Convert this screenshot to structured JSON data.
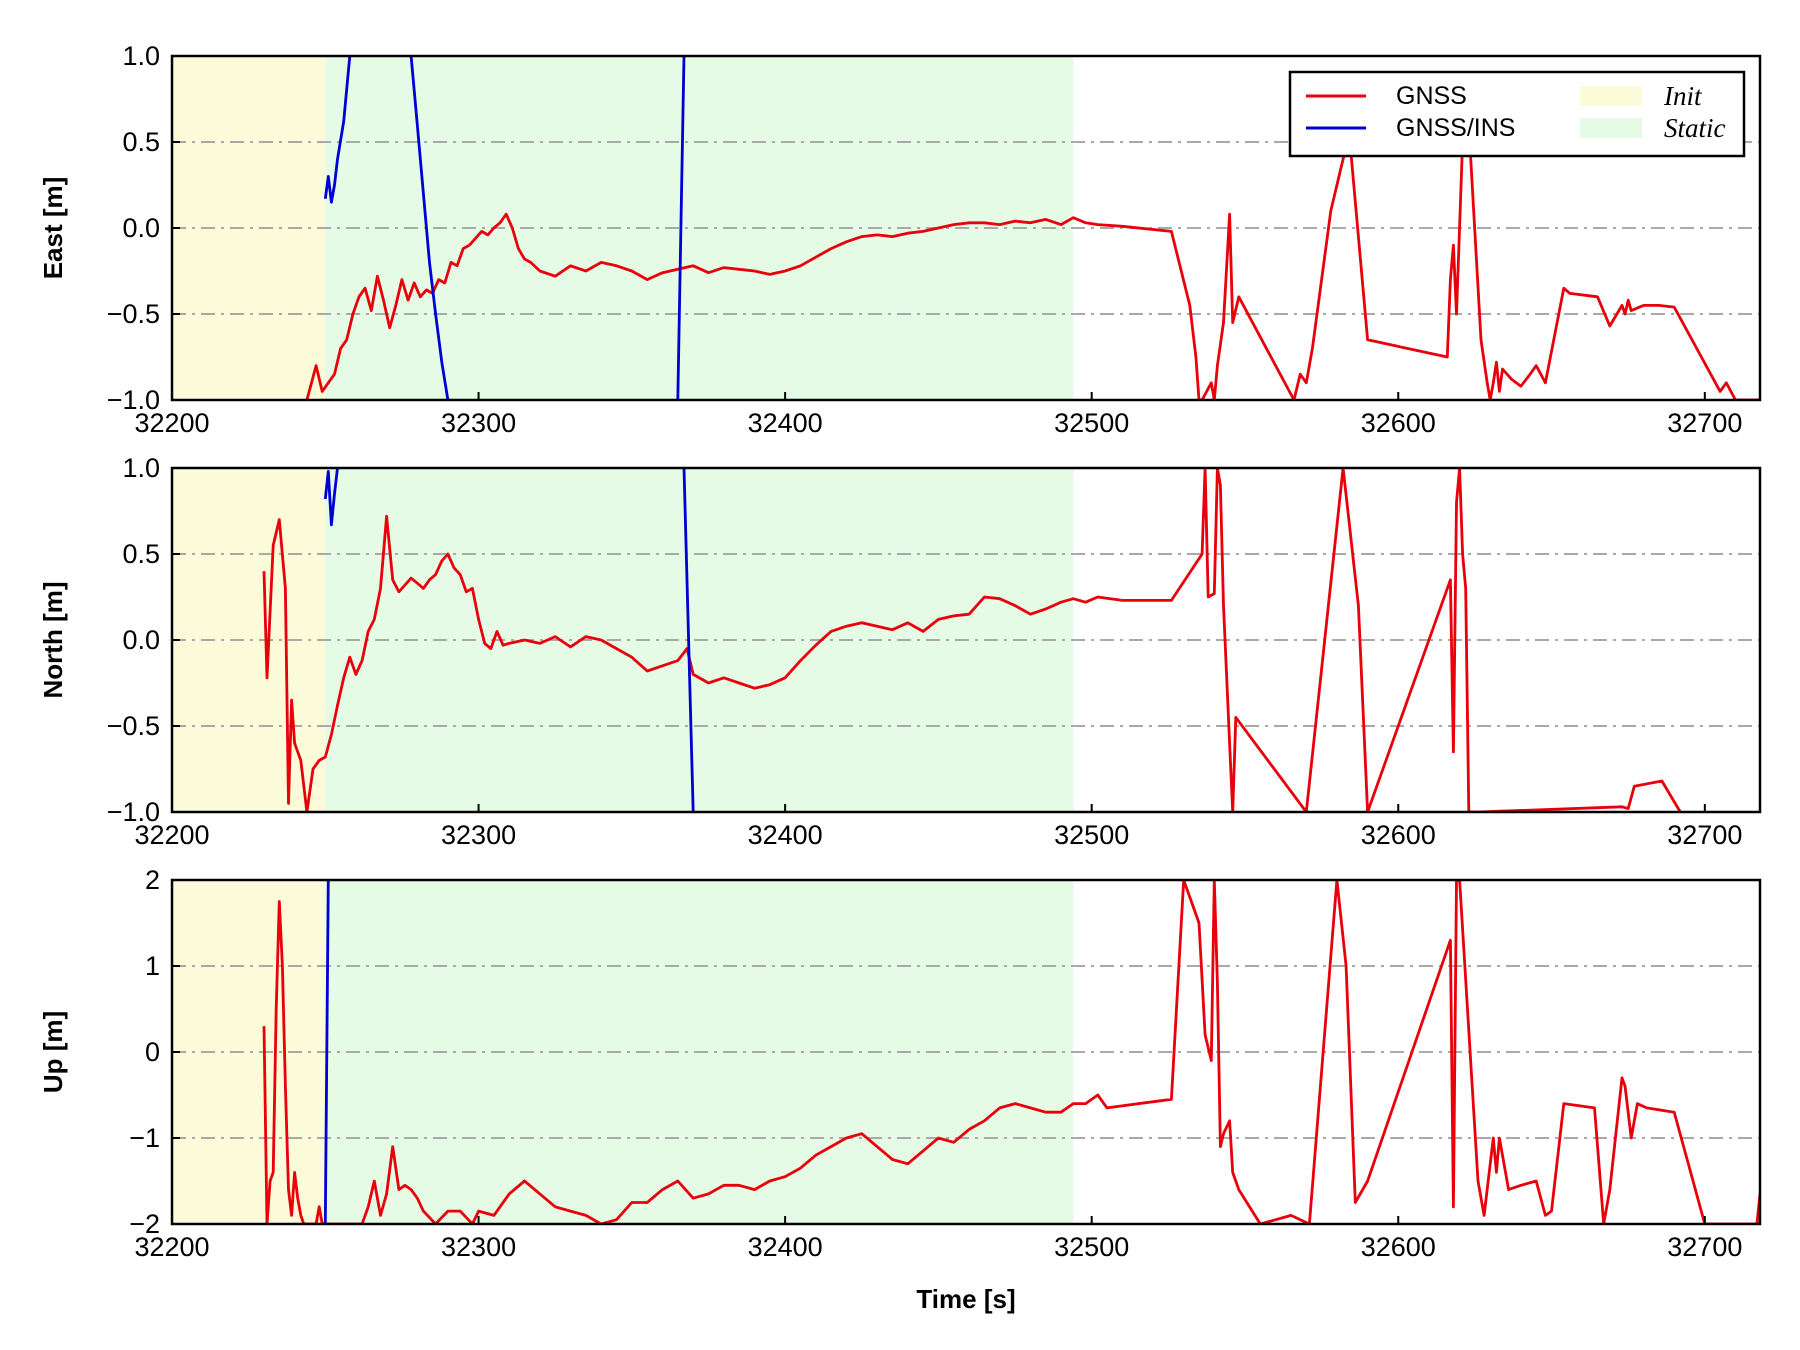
{
  "colors": {
    "gnss": "#e8000b",
    "gnss_ins": "#0000d4",
    "init_region": "#fbfbd9",
    "static_region": "#e6fbe6",
    "grid": "#a9a9a9",
    "axis": "#000000"
  },
  "legend": {
    "placement": "top-right",
    "items": [
      {
        "label": "GNSS",
        "kind": "line",
        "color_key": "gnss"
      },
      {
        "label": "GNSS/INS",
        "kind": "line",
        "color_key": "gnss_ins"
      },
      {
        "label": "Init",
        "kind": "patch",
        "color_key": "init_region"
      },
      {
        "label": "Static",
        "kind": "patch",
        "color_key": "static_region"
      }
    ]
  },
  "xlabel": "Time [s]",
  "chart_data": [
    {
      "type": "line",
      "ylabel": "East [m]",
      "xlim": [
        32200,
        32718
      ],
      "ylim": [
        -1,
        1
      ],
      "xticks": [
        32200,
        32300,
        32400,
        32500,
        32600,
        32700
      ],
      "xtick_labels": [
        "32200",
        "32300",
        "32400",
        "32500",
        "32600",
        "32700"
      ],
      "yticks": [
        -1,
        -0.5,
        0,
        0.5,
        1
      ],
      "ytick_labels": [
        "−1.0",
        "−0.5",
        "0.0",
        "0.5",
        "1.0"
      ],
      "grid": "horizontal dash-dot",
      "regions": [
        {
          "label": "Init",
          "x": [
            32200,
            32250
          ]
        },
        {
          "label": "Static",
          "x": [
            32250,
            32494
          ]
        }
      ],
      "series": [
        {
          "name": "GNSS",
          "x": [
            32244,
            32247,
            32249,
            32251,
            32253,
            32255,
            32257,
            32259,
            32261,
            32263,
            32265,
            32267,
            32269,
            32271,
            32273,
            32275,
            32277,
            32279,
            32281,
            32283,
            32285,
            32287,
            32289,
            32291,
            32293,
            32295,
            32297,
            32299,
            32301,
            32303,
            32305,
            32307,
            32309,
            32311,
            32313,
            32315,
            32317,
            32320,
            32325,
            32330,
            32335,
            32340,
            32345,
            32350,
            32355,
            32360,
            32365,
            32370,
            32375,
            32380,
            32385,
            32390,
            32395,
            32400,
            32405,
            32410,
            32415,
            32420,
            32425,
            32430,
            32435,
            32440,
            32445,
            32450,
            32455,
            32460,
            32465,
            32470,
            32475,
            32480,
            32485,
            32490,
            32494,
            32498,
            32502,
            32510,
            32526,
            32532,
            32534,
            32535,
            32536,
            32539,
            32540,
            32541,
            32543,
            32545,
            32546,
            32548,
            32566,
            32568,
            32570,
            32572,
            32578,
            32584,
            32590,
            32616,
            32617,
            32618,
            32619,
            32621,
            32623,
            32627,
            32629,
            32630,
            32631,
            32632,
            32633,
            32634,
            32637,
            32640,
            32643,
            32645,
            32648,
            32654,
            32656,
            32665,
            32669,
            32673,
            32674,
            32675,
            32676,
            32680,
            32685,
            32690,
            32705,
            32707,
            32710,
            32718
          ],
          "y": [
            -1.0,
            -0.8,
            -0.95,
            -0.9,
            -0.85,
            -0.7,
            -0.65,
            -0.5,
            -0.4,
            -0.35,
            -0.48,
            -0.28,
            -0.42,
            -0.58,
            -0.45,
            -0.3,
            -0.42,
            -0.32,
            -0.4,
            -0.36,
            -0.38,
            -0.3,
            -0.32,
            -0.2,
            -0.22,
            -0.12,
            -0.1,
            -0.06,
            -0.02,
            -0.04,
            0.0,
            0.03,
            0.08,
            0.0,
            -0.12,
            -0.18,
            -0.2,
            -0.25,
            -0.28,
            -0.22,
            -0.25,
            -0.2,
            -0.22,
            -0.25,
            -0.3,
            -0.26,
            -0.24,
            -0.22,
            -0.26,
            -0.23,
            -0.24,
            -0.25,
            -0.27,
            -0.25,
            -0.22,
            -0.17,
            -0.12,
            -0.08,
            -0.05,
            -0.04,
            -0.05,
            -0.03,
            -0.02,
            0.0,
            0.02,
            0.03,
            0.03,
            0.02,
            0.04,
            0.03,
            0.05,
            0.02,
            0.06,
            0.03,
            0.02,
            0.01,
            -0.02,
            -0.45,
            -0.75,
            -1.0,
            -1.0,
            -0.9,
            -1.0,
            -0.8,
            -0.55,
            0.08,
            -0.55,
            -0.4,
            -1.0,
            -0.85,
            -0.9,
            -0.7,
            0.1,
            0.55,
            -0.65,
            -0.75,
            -0.3,
            -0.1,
            -0.5,
            0.5,
            0.6,
            -0.65,
            -0.9,
            -1.0,
            -0.9,
            -0.78,
            -0.95,
            -0.82,
            -0.88,
            -0.92,
            -0.85,
            -0.8,
            -0.9,
            -0.35,
            -0.38,
            -0.4,
            -0.57,
            -0.45,
            -0.5,
            -0.42,
            -0.48,
            -0.45,
            -0.45,
            -0.46,
            -0.95,
            -0.9,
            -1.0,
            -1.0
          ]
        },
        {
          "name": "GNSS/INS",
          "segments": [
            {
              "x": [
                32250,
                32251,
                32252,
                32253,
                32254,
                32256,
                32258
              ],
              "y": [
                0.17,
                0.3,
                0.15,
                0.25,
                0.4,
                0.62,
                1.0
              ]
            },
            {
              "x": [
                32278,
                32280,
                32282,
                32284,
                32286,
                32288,
                32290
              ],
              "y": [
                1.0,
                0.6,
                0.2,
                -0.2,
                -0.5,
                -0.78,
                -1.0
              ]
            },
            {
              "x": [
                32365,
                32367
              ],
              "y": [
                -1.0,
                1.0
              ]
            }
          ]
        }
      ]
    },
    {
      "type": "line",
      "ylabel": "North [m]",
      "xlim": [
        32200,
        32718
      ],
      "ylim": [
        -1,
        1
      ],
      "xticks": [
        32200,
        32300,
        32400,
        32500,
        32600,
        32700
      ],
      "xtick_labels": [
        "32200",
        "32300",
        "32400",
        "32500",
        "32600",
        "32700"
      ],
      "yticks": [
        -1,
        -0.5,
        0,
        0.5,
        1
      ],
      "ytick_labels": [
        "−1.0",
        "−0.5",
        "0.0",
        "0.5",
        "1.0"
      ],
      "grid": "horizontal dash-dot",
      "regions": [
        {
          "label": "Init",
          "x": [
            32200,
            32250
          ]
        },
        {
          "label": "Static",
          "x": [
            32250,
            32494
          ]
        }
      ],
      "series": [
        {
          "name": "GNSS",
          "x": [
            32230,
            32231,
            32233,
            32235,
            32237,
            32238,
            32239,
            32240,
            32242,
            32244,
            32246,
            32248,
            32250,
            32252,
            32254,
            32256,
            32258,
            32260,
            32262,
            32264,
            32266,
            32268,
            32270,
            32272,
            32274,
            32276,
            32278,
            32280,
            32282,
            32284,
            32286,
            32288,
            32290,
            32292,
            32294,
            32296,
            32298,
            32300,
            32302,
            32304,
            32306,
            32308,
            32310,
            32315,
            32320,
            32325,
            32330,
            32335,
            32340,
            32345,
            32350,
            32355,
            32360,
            32365,
            32368,
            32370,
            32375,
            32380,
            32385,
            32390,
            32395,
            32400,
            32405,
            32410,
            32415,
            32420,
            32425,
            32430,
            32435,
            32440,
            32445,
            32450,
            32455,
            32460,
            32465,
            32470,
            32475,
            32480,
            32485,
            32490,
            32494,
            32498,
            32502,
            32510,
            32526,
            32536,
            32537,
            32538,
            32540,
            32541,
            32542,
            32543,
            32545,
            32546,
            32547,
            32570,
            32582,
            32587,
            32590,
            32617,
            32618,
            32619,
            32620,
            32621,
            32622,
            32623,
            32626,
            32673,
            32675,
            32677,
            32686,
            32692
          ],
          "y": [
            0.4,
            -0.22,
            0.55,
            0.7,
            0.3,
            -0.95,
            -0.35,
            -0.6,
            -0.7,
            -1.0,
            -0.75,
            -0.7,
            -0.68,
            -0.55,
            -0.38,
            -0.22,
            -0.1,
            -0.2,
            -0.12,
            0.05,
            0.12,
            0.3,
            0.72,
            0.35,
            0.28,
            0.32,
            0.36,
            0.33,
            0.3,
            0.35,
            0.38,
            0.46,
            0.5,
            0.42,
            0.38,
            0.28,
            0.3,
            0.12,
            -0.02,
            -0.05,
            0.05,
            -0.03,
            -0.02,
            0.0,
            -0.02,
            0.02,
            -0.04,
            0.02,
            0.0,
            -0.05,
            -0.1,
            -0.18,
            -0.15,
            -0.12,
            -0.05,
            -0.2,
            -0.25,
            -0.22,
            -0.25,
            -0.28,
            -0.26,
            -0.22,
            -0.12,
            -0.03,
            0.05,
            0.08,
            0.1,
            0.08,
            0.06,
            0.1,
            0.05,
            0.12,
            0.14,
            0.15,
            0.25,
            0.24,
            0.2,
            0.15,
            0.18,
            0.22,
            0.24,
            0.22,
            0.25,
            0.23,
            0.23,
            0.5,
            1.0,
            0.25,
            0.27,
            1.0,
            0.9,
            0.2,
            -0.6,
            -1.0,
            -0.45,
            -1.0,
            1.0,
            0.2,
            -1.0,
            0.35,
            -0.65,
            0.8,
            1.0,
            0.5,
            0.3,
            -1.0,
            -1.0,
            -0.97,
            -0.98,
            -0.85,
            -0.82,
            -1.0
          ]
        },
        {
          "name": "GNSS/INS",
          "segments": [
            {
              "x": [
                32250,
                32251,
                32252,
                32253,
                32254
              ],
              "y": [
                0.82,
                0.98,
                0.67,
                0.85,
                1.0
              ]
            },
            {
              "x": [
                32367,
                32370
              ],
              "y": [
                1.0,
                -1.0
              ]
            }
          ]
        }
      ]
    },
    {
      "type": "line",
      "ylabel": "Up [m]",
      "xlabel": "Time [s]",
      "xlim": [
        32200,
        32718
      ],
      "ylim": [
        -2,
        2
      ],
      "xticks": [
        32200,
        32300,
        32400,
        32500,
        32600,
        32700
      ],
      "xtick_labels": [
        "32200",
        "32300",
        "32400",
        "32500",
        "32600",
        "32700"
      ],
      "yticks": [
        -2,
        -1,
        0,
        1,
        2
      ],
      "ytick_labels": [
        "−2",
        "−1",
        "0",
        "1",
        "2"
      ],
      "grid": "horizontal dash-dot",
      "regions": [
        {
          "label": "Init",
          "x": [
            32200,
            32250
          ]
        },
        {
          "label": "Static",
          "x": [
            32250,
            32494
          ]
        }
      ],
      "series": [
        {
          "name": "GNSS",
          "x": [
            32230,
            32231,
            32232,
            32233,
            32234,
            32235,
            32236,
            32237,
            32238,
            32239,
            32240,
            32241,
            32242,
            32243,
            32247,
            32248,
            32249,
            32262,
            32264,
            32266,
            32268,
            32270,
            32272,
            32274,
            32276,
            32278,
            32280,
            32282,
            32286,
            32290,
            32294,
            32298,
            32300,
            32305,
            32310,
            32315,
            32320,
            32325,
            32330,
            32335,
            32340,
            32345,
            32350,
            32355,
            32360,
            32365,
            32370,
            32375,
            32380,
            32385,
            32390,
            32395,
            32400,
            32405,
            32410,
            32415,
            32420,
            32425,
            32430,
            32435,
            32440,
            32445,
            32450,
            32455,
            32460,
            32465,
            32470,
            32475,
            32480,
            32485,
            32490,
            32494,
            32498,
            32502,
            32505,
            32526,
            32530,
            32535,
            32537,
            32539,
            32540,
            32541,
            32542,
            32543,
            32545,
            32546,
            32548,
            32555,
            32565,
            32571,
            32580,
            32583,
            32586,
            32590,
            32617,
            32618,
            32619,
            32620,
            32626,
            32628,
            32631,
            32632,
            32633,
            32636,
            32640,
            32645,
            32648,
            32650,
            32654,
            32664,
            32667,
            32669,
            32673,
            32674,
            32676,
            32678,
            32681,
            32690,
            32700,
            32717,
            32718
          ],
          "y": [
            0.3,
            -2.0,
            -1.5,
            -1.4,
            0.5,
            1.75,
            1.0,
            -0.4,
            -1.6,
            -1.9,
            -1.4,
            -1.7,
            -1.9,
            -2.0,
            -2.0,
            -1.8,
            -2.0,
            -2.0,
            -1.8,
            -1.5,
            -1.9,
            -1.65,
            -1.1,
            -1.6,
            -1.55,
            -1.6,
            -1.7,
            -1.85,
            -2.0,
            -1.85,
            -1.85,
            -2.0,
            -1.85,
            -1.9,
            -1.65,
            -1.5,
            -1.65,
            -1.8,
            -1.85,
            -1.9,
            -2.0,
            -1.95,
            -1.75,
            -1.75,
            -1.6,
            -1.5,
            -1.7,
            -1.65,
            -1.55,
            -1.55,
            -1.6,
            -1.5,
            -1.45,
            -1.35,
            -1.2,
            -1.1,
            -1.0,
            -0.95,
            -1.1,
            -1.25,
            -1.3,
            -1.15,
            -1.0,
            -1.05,
            -0.9,
            -0.8,
            -0.65,
            -0.6,
            -0.65,
            -0.7,
            -0.7,
            -0.6,
            -0.6,
            -0.5,
            -0.65,
            -0.55,
            2.0,
            1.5,
            0.2,
            -0.1,
            2.0,
            0.8,
            -1.1,
            -0.95,
            -0.8,
            -1.4,
            -1.6,
            -2.0,
            -1.9,
            -2.0,
            2.0,
            1.0,
            -1.75,
            -1.5,
            1.3,
            -1.8,
            2.0,
            2.0,
            -1.5,
            -1.9,
            -1.0,
            -1.4,
            -1.0,
            -1.6,
            -1.55,
            -1.5,
            -1.9,
            -1.85,
            -0.6,
            -0.65,
            -2.0,
            -1.6,
            -0.3,
            -0.4,
            -1.0,
            -0.6,
            -0.65,
            -0.7,
            -2.0,
            -2.0,
            -1.65
          ]
        },
        {
          "name": "GNSS/INS",
          "segments": [
            {
              "x": [
                32250,
                32251
              ],
              "y": [
                -2.0,
                2.0
              ]
            }
          ]
        }
      ]
    }
  ]
}
